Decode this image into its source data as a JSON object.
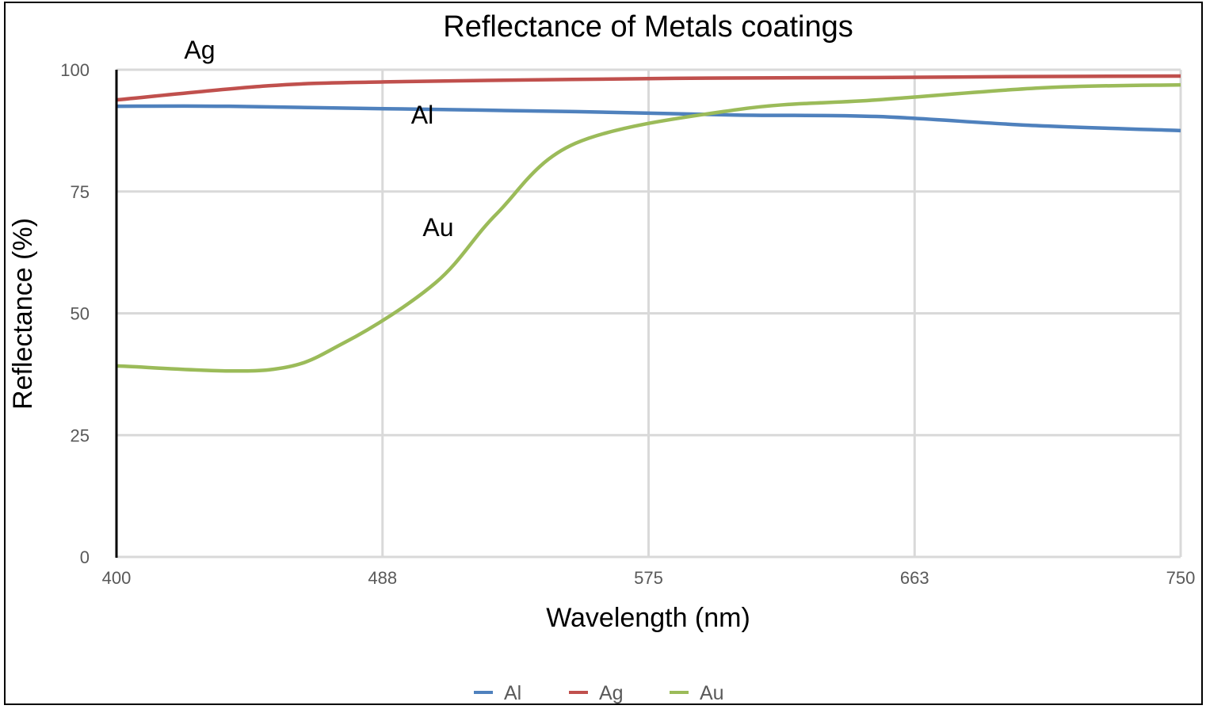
{
  "chart_data": {
    "type": "line",
    "title": "Reflectance of Metals coatings",
    "xlabel": "Wavelength (nm)",
    "ylabel": "Reflectance (%)",
    "xlim": [
      400,
      750
    ],
    "ylim": [
      0,
      100
    ],
    "x_ticks": [
      "400",
      "488",
      "575",
      "663",
      "750"
    ],
    "y_ticks": [
      "0",
      "25",
      "50",
      "75",
      "100"
    ],
    "grid": true,
    "legend": "bottom",
    "series": [
      {
        "name": "Al",
        "color": "#4F81BD",
        "x": [
          400,
          437,
          488,
          551,
          604,
          650,
          700,
          750
        ],
        "y": [
          92.5,
          92.5,
          92.0,
          91.4,
          90.7,
          90.4,
          88.6,
          87.5
        ]
      },
      {
        "name": "Ag",
        "color": "#C0504D",
        "x": [
          400,
          450,
          488,
          550,
          600,
          650,
          700,
          750
        ],
        "y": [
          93.8,
          96.7,
          97.5,
          98.0,
          98.3,
          98.4,
          98.6,
          98.7
        ]
      },
      {
        "name": "Au",
        "color": "#9BBB59",
        "x": [
          400,
          450,
          475,
          505,
          525,
          551,
          604,
          650,
          705,
          750
        ],
        "y": [
          39.2,
          38.4,
          44.0,
          56.3,
          70.4,
          84.9,
          91.8,
          93.8,
          96.3,
          96.9
        ]
      }
    ],
    "annotations": [
      "Ag",
      "Al",
      "Au"
    ]
  }
}
